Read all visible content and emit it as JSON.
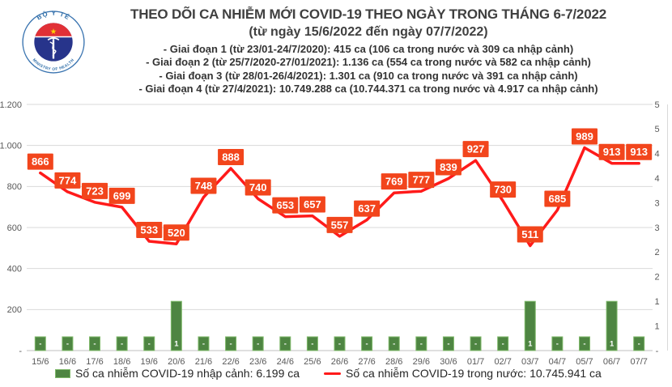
{
  "header": {
    "title": "THEO DÕI CA NHIỄM MỚI COVID-19 THEO NGÀY TRONG THÁNG 6-7/2022",
    "subtitle": "(từ ngày 15/6/2022 đến ngày 07/7/2022)",
    "phases": [
      "- Giai đoạn 1 (từ 23/01-24/7/2020): 415 ca (106 ca trong nước và 309 ca nhập cảnh)",
      "- Giai đoạn 2 (từ 25/7/2020-27/01/2021): 1.136 ca (554 ca trong nước và 582 ca nhập cảnh)",
      "- Giai đoạn 3 (từ 28/01-26/4/2021): 1.301 ca (910 ca trong nước và 391 ca nhập cảnh)",
      "- Giai đoạn 4 (từ 27/4/2021): 10.749.288 ca (10.744.371 ca trong nước và 4.917 ca nhập cảnh)"
    ]
  },
  "logo": {
    "top_text": "BỘ Y TẾ",
    "bottom_text": "MINISTRY OF HEALTH"
  },
  "chart_data": {
    "type": "combo",
    "categories": [
      "15/6",
      "16/6",
      "17/6",
      "18/6",
      "19/6",
      "20/6",
      "21/6",
      "22/6",
      "23/6",
      "24/6",
      "25/6",
      "26/6",
      "27/6",
      "28/6",
      "29/6",
      "30/6",
      "01/7",
      "02/7",
      "03/7",
      "04/7",
      "05/7",
      "06/7",
      "07/7"
    ],
    "series": [
      {
        "name": "Số ca nhiễm COVID-19 nhập cảnh",
        "type": "bar",
        "axis": "right",
        "values": [
          0,
          0,
          0,
          0,
          0,
          1,
          0,
          0,
          0,
          0,
          0,
          0,
          0,
          0,
          0,
          0,
          0,
          0,
          1,
          0,
          0,
          1,
          0
        ],
        "labels": [
          "-",
          "-",
          "-",
          "-",
          "-",
          "1",
          "-",
          "-",
          "-",
          "-",
          "-",
          "-",
          "-",
          "-",
          "-",
          "-",
          "-",
          "-",
          "1",
          "-",
          "-",
          "1",
          "-"
        ]
      },
      {
        "name": "Số ca nhiễm COVID-19 trong nước",
        "type": "line",
        "axis": "left",
        "values": [
          866,
          774,
          723,
          699,
          533,
          520,
          748,
          888,
          740,
          653,
          657,
          557,
          637,
          769,
          777,
          839,
          927,
          730,
          511,
          685,
          989,
          913,
          913
        ],
        "labels": [
          "866",
          "774",
          "723",
          "699",
          "533",
          "520",
          "748",
          "888",
          "740",
          "653",
          "657",
          "557",
          "637",
          "769",
          "777",
          "839",
          "927",
          "730",
          "511",
          "685",
          "989",
          "913",
          "913"
        ]
      }
    ],
    "left_axis": {
      "min": 0,
      "max": 1200,
      "ticks": [
        "-",
        "200",
        "400",
        "600",
        "800",
        "1.000",
        "1.200"
      ]
    },
    "right_axis": {
      "min": 0,
      "max": 5,
      "ticks": [
        "-",
        "1",
        "1",
        "2",
        "2",
        "3",
        "3",
        "4",
        "4",
        "5",
        "5"
      ]
    },
    "grid": true,
    "legend_position": "bottom",
    "colors": {
      "line": "#ff1a1a",
      "label_box": "#f2451c",
      "bar_fill": "#4e8542",
      "bar_border": "#7fb96a",
      "grid": "#d9d9d9",
      "axis_line": "#bfbfbf",
      "axis_text": "#595959"
    }
  },
  "legend": {
    "items": [
      {
        "label": "Số ca nhiễm COVID-19 nhập cảnh: 6.199 ca"
      },
      {
        "label": "Số ca nhiễm COVID-19 trong nước: 10.745.941 ca"
      }
    ]
  }
}
